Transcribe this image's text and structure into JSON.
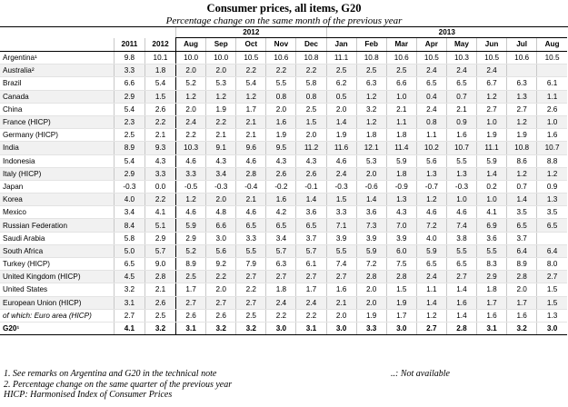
{
  "title": "Consumer prices, all items, G20",
  "subtitle": "Percentage change on the same month of the previous year",
  "year_groups": {
    "y2012": "2012",
    "y2013": "2013"
  },
  "columns": [
    "2011",
    "2012",
    "Aug",
    "Sep",
    "Oct",
    "Nov",
    "Dec",
    "Jan",
    "Feb",
    "Mar",
    "Apr",
    "May",
    "Jun",
    "Jul",
    "Aug"
  ],
  "rows": [
    {
      "name": "Argentina¹",
      "values": [
        "9.8",
        "10.1",
        "10.0",
        "10.0",
        "10.5",
        "10.6",
        "10.8",
        "11.1",
        "10.8",
        "10.6",
        "10.5",
        "10.3",
        "10.5",
        "10.6",
        "10.5"
      ]
    },
    {
      "name": "Australia²",
      "values": [
        "3.3",
        "1.8",
        "2.0",
        "2.0",
        "2.2",
        "2.2",
        "2.2",
        "2.5",
        "2.5",
        "2.5",
        "2.4",
        "2.4",
        "2.4",
        "",
        ""
      ]
    },
    {
      "name": "Brazil",
      "values": [
        "6.6",
        "5.4",
        "5.2",
        "5.3",
        "5.4",
        "5.5",
        "5.8",
        "6.2",
        "6.3",
        "6.6",
        "6.5",
        "6.5",
        "6.7",
        "6.3",
        "6.1"
      ]
    },
    {
      "name": "Canada",
      "values": [
        "2.9",
        "1.5",
        "1.2",
        "1.2",
        "1.2",
        "0.8",
        "0.8",
        "0.5",
        "1.2",
        "1.0",
        "0.4",
        "0.7",
        "1.2",
        "1.3",
        "1.1"
      ]
    },
    {
      "name": "China",
      "values": [
        "5.4",
        "2.6",
        "2.0",
        "1.9",
        "1.7",
        "2.0",
        "2.5",
        "2.0",
        "3.2",
        "2.1",
        "2.4",
        "2.1",
        "2.7",
        "2.7",
        "2.6"
      ]
    },
    {
      "name": "France (HICP)",
      "values": [
        "2.3",
        "2.2",
        "2.4",
        "2.2",
        "2.1",
        "1.6",
        "1.5",
        "1.4",
        "1.2",
        "1.1",
        "0.8",
        "0.9",
        "1.0",
        "1.2",
        "1.0"
      ]
    },
    {
      "name": "Germany (HICP)",
      "values": [
        "2.5",
        "2.1",
        "2.2",
        "2.1",
        "2.1",
        "1.9",
        "2.0",
        "1.9",
        "1.8",
        "1.8",
        "1.1",
        "1.6",
        "1.9",
        "1.9",
        "1.6"
      ]
    },
    {
      "name": "India",
      "values": [
        "8.9",
        "9.3",
        "10.3",
        "9.1",
        "9.6",
        "9.5",
        "11.2",
        "11.6",
        "12.1",
        "11.4",
        "10.2",
        "10.7",
        "11.1",
        "10.8",
        "10.7"
      ]
    },
    {
      "name": "Indonesia",
      "values": [
        "5.4",
        "4.3",
        "4.6",
        "4.3",
        "4.6",
        "4.3",
        "4.3",
        "4.6",
        "5.3",
        "5.9",
        "5.6",
        "5.5",
        "5.9",
        "8.6",
        "8.8"
      ]
    },
    {
      "name": "Italy (HICP)",
      "values": [
        "2.9",
        "3.3",
        "3.3",
        "3.4",
        "2.8",
        "2.6",
        "2.6",
        "2.4",
        "2.0",
        "1.8",
        "1.3",
        "1.3",
        "1.4",
        "1.2",
        "1.2"
      ]
    },
    {
      "name": "Japan",
      "values": [
        "-0.3",
        "0.0",
        "-0.5",
        "-0.3",
        "-0.4",
        "-0.2",
        "-0.1",
        "-0.3",
        "-0.6",
        "-0.9",
        "-0.7",
        "-0.3",
        "0.2",
        "0.7",
        "0.9"
      ]
    },
    {
      "name": "Korea",
      "values": [
        "4.0",
        "2.2",
        "1.2",
        "2.0",
        "2.1",
        "1.6",
        "1.4",
        "1.5",
        "1.4",
        "1.3",
        "1.2",
        "1.0",
        "1.0",
        "1.4",
        "1.3"
      ]
    },
    {
      "name": "Mexico",
      "values": [
        "3.4",
        "4.1",
        "4.6",
        "4.8",
        "4.6",
        "4.2",
        "3.6",
        "3.3",
        "3.6",
        "4.3",
        "4.6",
        "4.6",
        "4.1",
        "3.5",
        "3.5"
      ]
    },
    {
      "name": "Russian Federation",
      "values": [
        "8.4",
        "5.1",
        "5.9",
        "6.6",
        "6.5",
        "6.5",
        "6.5",
        "7.1",
        "7.3",
        "7.0",
        "7.2",
        "7.4",
        "6.9",
        "6.5",
        "6.5"
      ]
    },
    {
      "name": "Saudi Arabia",
      "values": [
        "5.8",
        "2.9",
        "2.9",
        "3.0",
        "3.3",
        "3.4",
        "3.7",
        "3.9",
        "3.9",
        "3.9",
        "4.0",
        "3.8",
        "3.6",
        "3.7",
        ""
      ]
    },
    {
      "name": "South Africa",
      "values": [
        "5.0",
        "5.7",
        "5.2",
        "5.6",
        "5.5",
        "5.7",
        "5.7",
        "5.5",
        "5.9",
        "6.0",
        "5.9",
        "5.5",
        "5.5",
        "6.4",
        "6.4"
      ]
    },
    {
      "name": "Turkey (HICP)",
      "values": [
        "6.5",
        "9.0",
        "8.9",
        "9.2",
        "7.9",
        "6.3",
        "6.1",
        "7.4",
        "7.2",
        "7.5",
        "6.5",
        "6.5",
        "8.3",
        "8.9",
        "8.0"
      ]
    },
    {
      "name": "United Kingdom (HICP)",
      "values": [
        "4.5",
        "2.8",
        "2.5",
        "2.2",
        "2.7",
        "2.7",
        "2.7",
        "2.7",
        "2.8",
        "2.8",
        "2.4",
        "2.7",
        "2.9",
        "2.8",
        "2.7"
      ]
    },
    {
      "name": "United States",
      "values": [
        "3.2",
        "2.1",
        "1.7",
        "2.0",
        "2.2",
        "1.8",
        "1.7",
        "1.6",
        "2.0",
        "1.5",
        "1.1",
        "1.4",
        "1.8",
        "2.0",
        "1.5"
      ]
    },
    {
      "name": "European Union (HICP)",
      "values": [
        "3.1",
        "2.6",
        "2.7",
        "2.7",
        "2.7",
        "2.4",
        "2.4",
        "2.1",
        "2.0",
        "1.9",
        "1.4",
        "1.6",
        "1.7",
        "1.7",
        "1.5"
      ]
    },
    {
      "name": "of which: Euro area (HICP)",
      "values": [
        "2.7",
        "2.5",
        "2.6",
        "2.6",
        "2.5",
        "2.2",
        "2.2",
        "2.0",
        "1.9",
        "1.7",
        "1.2",
        "1.4",
        "1.6",
        "1.6",
        "1.3"
      ]
    }
  ],
  "g20": {
    "name": "G20¹",
    "values": [
      "4.1",
      "3.2",
      "3.1",
      "3.2",
      "3.2",
      "3.0",
      "3.1",
      "3.0",
      "3.3",
      "3.0",
      "2.7",
      "2.8",
      "3.1",
      "3.2",
      "3.0"
    ]
  },
  "footnotes": {
    "fn1": "1. See remarks on Argentina and G20 in the technical note",
    "fn2": "2. Percentage change on the same quarter of the previous year",
    "fn3": "HICP: Harmonised Index of Consumer Prices",
    "not_available": "..: Not available"
  }
}
